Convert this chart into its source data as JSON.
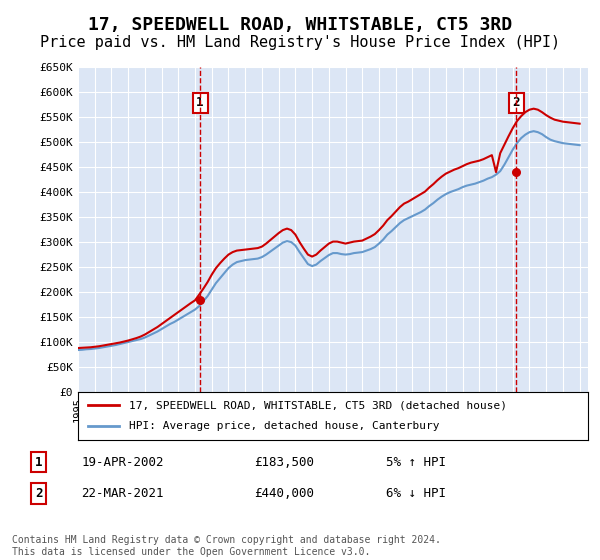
{
  "title": "17, SPEEDWELL ROAD, WHITSTABLE, CT5 3RD",
  "subtitle": "Price paid vs. HM Land Registry's House Price Index (HPI)",
  "title_fontsize": 13,
  "subtitle_fontsize": 11,
  "bg_color": "#dce6f5",
  "plot_bg": "#dce6f5",
  "line1_color": "#cc0000",
  "line2_color": "#6699cc",
  "line1_label": "17, SPEEDWELL ROAD, WHITSTABLE, CT5 3RD (detached house)",
  "line2_label": "HPI: Average price, detached house, Canterbury",
  "ylim": [
    0,
    650000
  ],
  "yticks": [
    0,
    50000,
    100000,
    150000,
    200000,
    250000,
    300000,
    350000,
    400000,
    450000,
    500000,
    550000,
    600000,
    650000
  ],
  "ytick_labels": [
    "£0",
    "£50K",
    "£100K",
    "£150K",
    "£200K",
    "£250K",
    "£300K",
    "£350K",
    "£400K",
    "£450K",
    "£500K",
    "£550K",
    "£600K",
    "£650K"
  ],
  "sale1_year": 2002.3,
  "sale1_price": 183500,
  "sale1_label": "1",
  "sale1_date": "19-APR-2002",
  "sale1_price_str": "£183,500",
  "sale1_pct": "5% ↑ HPI",
  "sale2_year": 2021.2,
  "sale2_price": 440000,
  "sale2_label": "2",
  "sale2_date": "22-MAR-2021",
  "sale2_price_str": "£440,000",
  "sale2_pct": "6% ↓ HPI",
  "footer": "Contains HM Land Registry data © Crown copyright and database right 2024.\nThis data is licensed under the Open Government Licence v3.0.",
  "hpi_years": [
    1995,
    1995.25,
    1995.5,
    1995.75,
    1996,
    1996.25,
    1996.5,
    1996.75,
    1997,
    1997.25,
    1997.5,
    1997.75,
    1998,
    1998.25,
    1998.5,
    1998.75,
    1999,
    1999.25,
    1999.5,
    1999.75,
    2000,
    2000.25,
    2000.5,
    2000.75,
    2001,
    2001.25,
    2001.5,
    2001.75,
    2002,
    2002.25,
    2002.5,
    2002.75,
    2003,
    2003.25,
    2003.5,
    2003.75,
    2004,
    2004.25,
    2004.5,
    2004.75,
    2005,
    2005.25,
    2005.5,
    2005.75,
    2006,
    2006.25,
    2006.5,
    2006.75,
    2007,
    2007.25,
    2007.5,
    2007.75,
    2008,
    2008.25,
    2008.5,
    2008.75,
    2009,
    2009.25,
    2009.5,
    2009.75,
    2010,
    2010.25,
    2010.5,
    2010.75,
    2011,
    2011.25,
    2011.5,
    2011.75,
    2012,
    2012.25,
    2012.5,
    2012.75,
    2013,
    2013.25,
    2013.5,
    2013.75,
    2014,
    2014.25,
    2014.5,
    2014.75,
    2015,
    2015.25,
    2015.5,
    2015.75,
    2016,
    2016.25,
    2016.5,
    2016.75,
    2017,
    2017.25,
    2017.5,
    2017.75,
    2018,
    2018.25,
    2018.5,
    2018.75,
    2019,
    2019.25,
    2019.5,
    2019.75,
    2020,
    2020.25,
    2020.5,
    2020.75,
    2021,
    2021.25,
    2021.5,
    2021.75,
    2022,
    2022.25,
    2022.5,
    2022.75,
    2023,
    2023.25,
    2023.5,
    2023.75,
    2024,
    2024.25,
    2024.5,
    2024.75,
    2025
  ],
  "hpi_values": [
    84000,
    84500,
    85500,
    86000,
    87000,
    88000,
    89500,
    91000,
    92500,
    94000,
    96000,
    98000,
    100000,
    102000,
    104000,
    106000,
    109000,
    113000,
    117000,
    121000,
    126000,
    131000,
    136000,
    140000,
    145000,
    150000,
    155000,
    160000,
    165000,
    172000,
    182000,
    192000,
    205000,
    218000,
    228000,
    238000,
    248000,
    255000,
    260000,
    262000,
    264000,
    265000,
    266000,
    267000,
    270000,
    275000,
    281000,
    287000,
    293000,
    299000,
    302000,
    300000,
    293000,
    280000,
    268000,
    256000,
    252000,
    255000,
    262000,
    268000,
    274000,
    278000,
    278000,
    276000,
    275000,
    276000,
    278000,
    279000,
    280000,
    283000,
    286000,
    290000,
    297000,
    305000,
    315000,
    322000,
    330000,
    338000,
    344000,
    348000,
    352000,
    356000,
    360000,
    365000,
    372000,
    378000,
    385000,
    391000,
    396000,
    400000,
    403000,
    406000,
    410000,
    413000,
    415000,
    417000,
    420000,
    423000,
    427000,
    430000,
    435000,
    442000,
    455000,
    470000,
    485000,
    498000,
    508000,
    515000,
    520000,
    522000,
    520000,
    516000,
    510000,
    505000,
    502000,
    500000,
    498000,
    497000,
    496000,
    495000,
    494000
  ],
  "price_years": [
    1995,
    1995.25,
    1995.5,
    1995.75,
    1996,
    1996.25,
    1996.5,
    1996.75,
    1997,
    1997.25,
    1997.5,
    1997.75,
    1998,
    1998.25,
    1998.5,
    1998.75,
    1999,
    1999.25,
    1999.5,
    1999.75,
    2000,
    2000.25,
    2000.5,
    2000.75,
    2001,
    2001.25,
    2001.5,
    2001.75,
    2002,
    2002.25,
    2002.5,
    2002.75,
    2003,
    2003.25,
    2003.5,
    2003.75,
    2004,
    2004.25,
    2004.5,
    2004.75,
    2005,
    2005.25,
    2005.5,
    2005.75,
    2006,
    2006.25,
    2006.5,
    2006.75,
    2007,
    2007.25,
    2007.5,
    2007.75,
    2008,
    2008.25,
    2008.5,
    2008.75,
    2009,
    2009.25,
    2009.5,
    2009.75,
    2010,
    2010.25,
    2010.5,
    2010.75,
    2011,
    2011.25,
    2011.5,
    2011.75,
    2012,
    2012.25,
    2012.5,
    2012.75,
    2013,
    2013.25,
    2013.5,
    2013.75,
    2014,
    2014.25,
    2014.5,
    2014.75,
    2015,
    2015.25,
    2015.5,
    2015.75,
    2016,
    2016.25,
    2016.5,
    2016.75,
    2017,
    2017.25,
    2017.5,
    2017.75,
    2018,
    2018.25,
    2018.5,
    2018.75,
    2019,
    2019.25,
    2019.5,
    2019.75,
    2020,
    2020.25,
    2020.5,
    2020.75,
    2021,
    2021.25,
    2021.5,
    2021.75,
    2022,
    2022.25,
    2022.5,
    2022.75,
    2023,
    2023.25,
    2023.5,
    2023.75,
    2024,
    2024.25,
    2024.5,
    2024.75,
    2025
  ],
  "price_values": [
    88000,
    88500,
    89000,
    89500,
    90500,
    91500,
    93000,
    94500,
    96000,
    97500,
    99000,
    101000,
    103000,
    105500,
    108000,
    111000,
    115000,
    120000,
    125000,
    130000,
    136000,
    142000,
    148000,
    154000,
    160000,
    166000,
    172000,
    178000,
    183500,
    195000,
    207000,
    220000,
    235000,
    248000,
    258000,
    267000,
    275000,
    280000,
    283000,
    284000,
    285000,
    286000,
    287000,
    288000,
    291000,
    297000,
    304000,
    311000,
    318000,
    324000,
    327000,
    324000,
    315000,
    300000,
    287000,
    275000,
    271000,
    275000,
    283000,
    290000,
    297000,
    301000,
    301000,
    299000,
    297000,
    299000,
    301000,
    302000,
    303000,
    307000,
    311000,
    316000,
    324000,
    333000,
    344000,
    352000,
    361000,
    370000,
    377000,
    381000,
    386000,
    391000,
    396000,
    401000,
    409000,
    416000,
    424000,
    431000,
    437000,
    441000,
    445000,
    448000,
    452000,
    456000,
    459000,
    461000,
    463000,
    466000,
    470000,
    474000,
    440000,
    478000,
    495000,
    512000,
    528000,
    542000,
    552000,
    560000,
    565000,
    567000,
    565000,
    560000,
    554000,
    549000,
    545000,
    543000,
    541000,
    540000,
    539000,
    538000,
    537000
  ]
}
